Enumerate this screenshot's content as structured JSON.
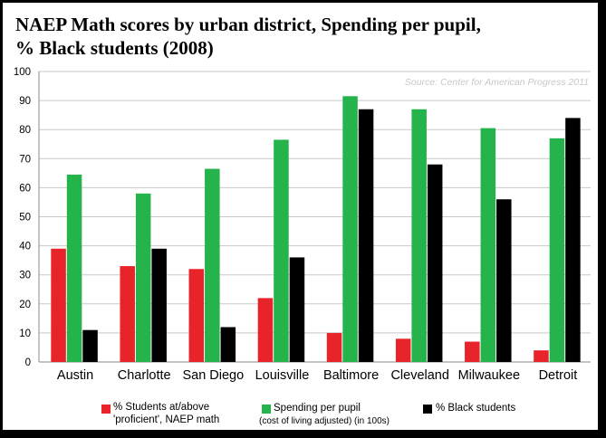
{
  "chart_data": {
    "type": "bar",
    "title_line1": "NAEP Math scores by urban district, Spending per pupil,",
    "title_line2": "% Black students (2008)",
    "source": "Source: Center for American Progress 2011",
    "categories": [
      "Austin",
      "Charlotte",
      "San Diego",
      "Louisville",
      "Baltimore",
      "Cleveland",
      "Milwaukee",
      "Detroit"
    ],
    "series": [
      {
        "name": "% Students at/above 'proficient', NAEP math",
        "legend_line1": "% Students at/above",
        "legend_line2": "'proficient', NAEP math",
        "color": "#e8232a",
        "values": [
          39,
          33,
          32,
          22,
          10,
          8,
          7,
          4
        ]
      },
      {
        "name": "Spending per pupil (cost of living adjusted) (in 100s)",
        "legend_line1": "Spending per pupil",
        "legend_line2": "(cost of living adjusted) (in 100s)",
        "color": "#25b34b",
        "values": [
          64.5,
          58,
          66.5,
          76.5,
          91.5,
          87,
          80.5,
          77
        ]
      },
      {
        "name": "% Black students",
        "legend_line1": "% Black students",
        "legend_line2": "",
        "color": "#000000",
        "values": [
          11,
          39,
          12,
          36,
          87,
          68,
          56,
          84
        ]
      }
    ],
    "ylim": [
      0,
      100
    ],
    "yticks": [
      0,
      10,
      20,
      30,
      40,
      50,
      60,
      70,
      80,
      90,
      100
    ],
    "grid": true,
    "legend_position": "bottom"
  }
}
